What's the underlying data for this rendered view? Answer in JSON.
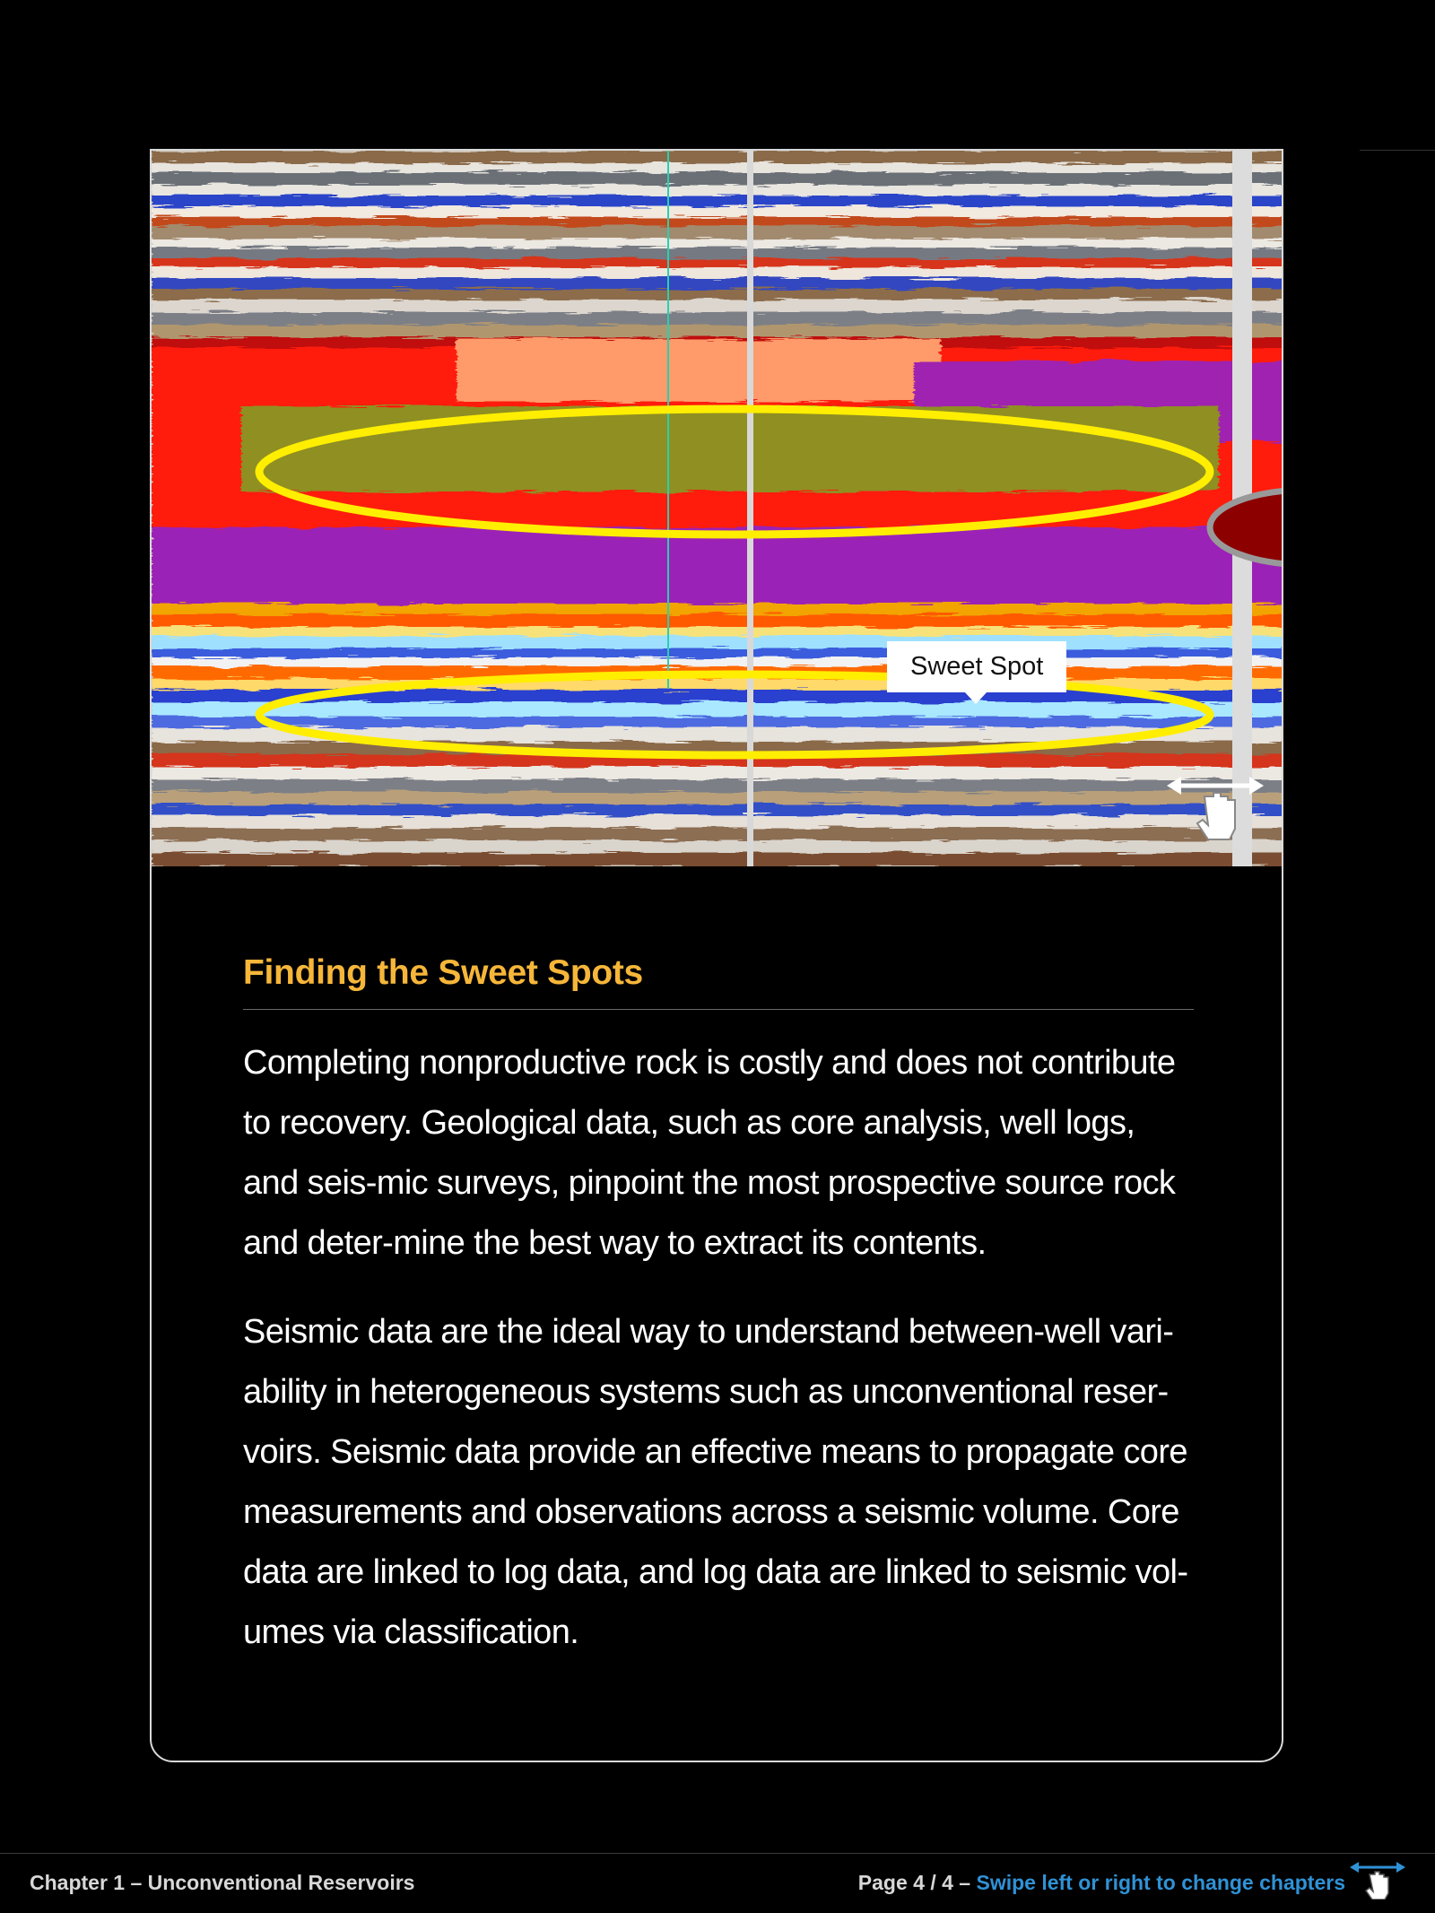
{
  "figure": {
    "callout_label": "Sweet Spot",
    "swipe_icon": "swipe-hand-icon"
  },
  "article": {
    "title": "Finding the Sweet Spots",
    "paragraphs": [
      "Completing nonproductive rock is costly and does not contribute to recovery. Geological data, such as core analysis, well logs, and seis-mic surveys, pinpoint the most prospective source rock and deter-mine the best way to extract its contents.",
      "Seismic data are the ideal way to understand between-well vari-ability in heterogeneous systems such as unconventional reser-voirs. Seismic data provide an effective means to propagate core measurements and observations across a seismic volume. Core data are linked to log data, and log data are linked to seismic vol-umes via classification."
    ]
  },
  "footer": {
    "chapter": "Chapter 1 – Unconventional Reservoirs",
    "page": "Page 4 / 4 – ",
    "hint": "Swipe left or right to change chapters",
    "icon": "swipe-hand-icon"
  },
  "colors": {
    "title": "#f6b639",
    "link": "#2f92d6",
    "highlight": "#ffee00"
  }
}
